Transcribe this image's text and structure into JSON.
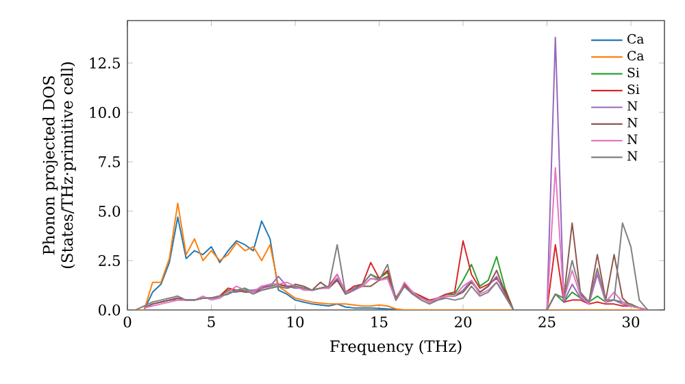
{
  "chart_data": {
    "type": "line",
    "xlabel": "Frequency (THz)",
    "ylabel": "Phonon projected DOS (States/THz·primitive cell)",
    "xlim": [
      0,
      32
    ],
    "ylim": [
      0,
      14.65
    ],
    "xticks": [
      0,
      5,
      10,
      15,
      20,
      25,
      30
    ],
    "yticks": [
      {
        "value": 0,
        "label": "0.0"
      },
      {
        "value": 2.5,
        "label": "2.5"
      },
      {
        "value": 5,
        "label": "5.0"
      },
      {
        "value": 7.5,
        "label": "7.5"
      },
      {
        "value": 10,
        "label": "10.0"
      },
      {
        "value": 12.5,
        "label": "12.5"
      }
    ],
    "legend": "top right",
    "grid": false,
    "x": [
      0,
      0.5,
      1,
      1.5,
      2,
      2.5,
      3,
      3.5,
      4,
      4.5,
      5,
      5.5,
      6,
      6.5,
      7,
      7.5,
      8,
      8.5,
      9,
      9.5,
      10,
      10.5,
      11,
      11.5,
      12,
      12.5,
      13,
      13.5,
      14,
      14.5,
      15,
      15.5,
      16,
      16.5,
      17,
      17.5,
      18,
      18.5,
      19,
      19.5,
      20,
      20.5,
      21,
      21.5,
      22,
      22.5,
      23,
      23.5,
      24,
      24.5,
      25,
      25.5,
      26,
      26.5,
      27,
      27.5,
      28,
      28.5,
      29,
      29.5,
      30,
      30.5,
      31
    ],
    "series": [
      {
        "name": "Ca",
        "color": "#1f77b4",
        "values": [
          null,
          null,
          0,
          0.9,
          1.3,
          2.4,
          4.7,
          2.6,
          3.0,
          2.8,
          3.2,
          2.4,
          3.0,
          3.5,
          3.3,
          3.0,
          4.5,
          3.6,
          1.0,
          0.8,
          0.5,
          0.4,
          0.3,
          0.25,
          0.2,
          0.3,
          0.15,
          0.1,
          0.1,
          0.1,
          0.08,
          0.05,
          0.03,
          null,
          null,
          null,
          null,
          null,
          null,
          null,
          null,
          null,
          null,
          null,
          null,
          null,
          null,
          null,
          null,
          null,
          null,
          null,
          null,
          null,
          null,
          null,
          null,
          null,
          null,
          null,
          null,
          null,
          null
        ]
      },
      {
        "name": "Ca",
        "color": "#ff7f0e",
        "values": [
          0,
          0,
          0,
          1.4,
          1.4,
          2.6,
          5.4,
          2.8,
          3.6,
          2.5,
          3.0,
          2.5,
          2.8,
          3.4,
          3.0,
          3.2,
          2.5,
          3.3,
          1.2,
          0.9,
          0.6,
          0.5,
          0.4,
          0.35,
          0.3,
          0.3,
          0.3,
          0.25,
          0.2,
          0.2,
          0.25,
          0.2,
          0.05,
          0,
          0,
          0,
          0,
          0,
          0,
          0,
          0,
          0,
          0,
          0,
          0,
          0,
          0,
          0,
          0,
          0,
          0,
          0,
          0,
          0,
          0,
          0,
          0,
          0,
          0,
          0,
          0,
          0,
          0
        ]
      },
      {
        "name": "Si",
        "color": "#2ca02c",
        "values": [
          null,
          null,
          null,
          null,
          null,
          null,
          null,
          null,
          null,
          null,
          0.6,
          0.7,
          1.0,
          1.0,
          1.1,
          0.9,
          1.2,
          1.2,
          1.3,
          1.2,
          1.2,
          1.1,
          1.0,
          1.1,
          1.2,
          1.5,
          0.9,
          1.1,
          1.3,
          1.8,
          1.6,
          1.9,
          0.6,
          1.3,
          0.9,
          0.7,
          0.4,
          0.6,
          0.8,
          0.8,
          1.5,
          2.3,
          1.2,
          1.5,
          2.7,
          1.1,
          0,
          0,
          0,
          0,
          0,
          0.8,
          0.4,
          0.9,
          0.6,
          0.4,
          0.7,
          0.4,
          0.5,
          0.4,
          0.3,
          0.1,
          0
        ]
      },
      {
        "name": "Si",
        "color": "#d62728",
        "values": [
          null,
          null,
          null,
          null,
          0.4,
          0.5,
          0.6,
          0.5,
          0.5,
          0.6,
          0.6,
          0.7,
          1.1,
          1.0,
          1.0,
          0.9,
          1.1,
          1.3,
          1.3,
          1.2,
          1.2,
          1.1,
          1.0,
          1.1,
          1.2,
          1.8,
          0.9,
          1.2,
          1.3,
          2.4,
          1.6,
          2.0,
          0.6,
          1.3,
          0.9,
          0.7,
          0.5,
          0.6,
          0.8,
          0.9,
          3.5,
          1.8,
          1.1,
          1.3,
          1.6,
          1.0,
          0,
          0,
          0,
          0,
          0,
          3.3,
          0.4,
          0.5,
          0.5,
          0.3,
          0.4,
          0.3,
          0.3,
          0.2,
          0.2,
          0.1,
          0
        ]
      },
      {
        "name": "N",
        "color": "#9467bd",
        "values": [
          null,
          null,
          0.1,
          0.3,
          0.4,
          0.5,
          0.5,
          0.5,
          0.5,
          0.6,
          0.6,
          0.6,
          0.9,
          0.9,
          1.0,
          1.0,
          1.1,
          1.2,
          1.7,
          1.2,
          1.1,
          1.1,
          1.0,
          1.1,
          1.1,
          1.6,
          0.8,
          1.1,
          1.2,
          1.6,
          1.5,
          1.6,
          0.5,
          1.2,
          0.8,
          0.6,
          0.4,
          0.5,
          0.7,
          0.7,
          1.0,
          1.5,
          0.9,
          1.2,
          1.7,
          0.8,
          0,
          0,
          0,
          0,
          0,
          13.8,
          0.4,
          1.3,
          0.6,
          0.3,
          1.8,
          0.4,
          0.5,
          0.3,
          0.2,
          0.1,
          0
        ]
      },
      {
        "name": "N",
        "color": "#8c564b",
        "values": [
          null,
          null,
          0.1,
          0.3,
          0.4,
          0.5,
          0.6,
          0.5,
          0.5,
          0.6,
          0.6,
          0.7,
          0.8,
          1.0,
          0.9,
          0.9,
          1.0,
          1.1,
          1.2,
          1.1,
          1.3,
          1.2,
          1.0,
          1.4,
          1.1,
          1.5,
          0.8,
          1.0,
          1.2,
          1.2,
          1.5,
          1.7,
          0.5,
          1.2,
          0.8,
          0.6,
          0.4,
          0.6,
          0.7,
          0.7,
          0.9,
          1.4,
          0.9,
          1.2,
          2.0,
          0.9,
          0,
          0,
          0,
          0,
          0,
          0.8,
          0.6,
          4.4,
          0.8,
          0.4,
          2.8,
          0.5,
          2.8,
          0.6,
          0.2,
          0.1,
          0
        ]
      },
      {
        "name": "N",
        "color": "#e377c2",
        "values": [
          null,
          null,
          0.1,
          0.2,
          0.3,
          0.4,
          0.5,
          0.5,
          0.5,
          0.7,
          0.5,
          0.6,
          0.9,
          1.2,
          1.0,
          0.9,
          1.2,
          1.3,
          1.3,
          1.4,
          1.2,
          1.0,
          1.0,
          1.1,
          1.1,
          1.8,
          0.9,
          1.0,
          1.2,
          1.6,
          1.5,
          1.6,
          0.5,
          1.4,
          0.9,
          0.6,
          0.4,
          0.6,
          0.7,
          0.7,
          1.2,
          1.5,
          0.8,
          1.0,
          1.4,
          0.7,
          0,
          0,
          0,
          0,
          0,
          7.2,
          0.5,
          2.0,
          0.7,
          0.3,
          2.0,
          0.4,
          0.9,
          0.4,
          0.2,
          0.1,
          0
        ]
      },
      {
        "name": "N",
        "color": "#7f7f7f",
        "values": [
          0,
          0,
          0.2,
          0.4,
          0.5,
          0.6,
          0.7,
          0.5,
          0.5,
          0.6,
          0.6,
          0.7,
          0.8,
          1.0,
          1.0,
          0.8,
          1.0,
          1.1,
          1.2,
          1.1,
          1.2,
          1.1,
          1.0,
          1.1,
          1.2,
          3.3,
          0.8,
          1.0,
          1.3,
          1.8,
          1.5,
          2.3,
          0.5,
          1.2,
          0.8,
          0.5,
          0.3,
          0.5,
          0.6,
          0.5,
          0.6,
          1.2,
          0.7,
          0.9,
          1.4,
          0.7,
          0,
          0,
          0,
          0,
          0,
          0.8,
          0.6,
          2.5,
          0.9,
          0.4,
          2.1,
          0.5,
          0.5,
          4.4,
          3.2,
          0.5,
          0
        ]
      }
    ]
  }
}
